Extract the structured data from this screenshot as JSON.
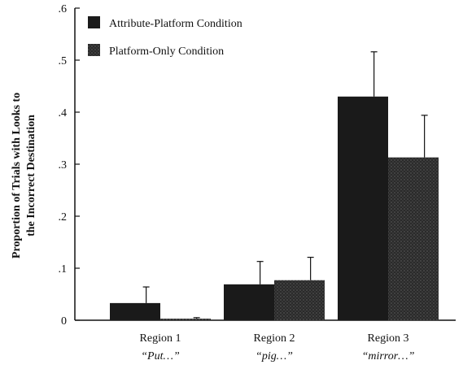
{
  "chart_data": {
    "type": "bar",
    "ylabel_lines": [
      "Proportion of Trials with Looks to",
      "the Incorrect Destination"
    ],
    "ylim": [
      0,
      0.6
    ],
    "yticks": [
      {
        "value": 0,
        "label": "0"
      },
      {
        "value": 0.1,
        "label": ".1"
      },
      {
        "value": 0.2,
        "label": ".2"
      },
      {
        "value": 0.3,
        "label": ".3"
      },
      {
        "value": 0.4,
        "label": ".4"
      },
      {
        "value": 0.5,
        "label": ".5"
      },
      {
        "value": 0.6,
        "label": ".6"
      }
    ],
    "categories": [
      "Region 1",
      "Region 2",
      "Region 3"
    ],
    "category_sublabels": [
      "“Put…”",
      "“pig…”",
      "“mirror…”"
    ],
    "legend_position": "top-left",
    "series": [
      {
        "name": "Attribute-Platform Condition",
        "color": "#1a1a1a",
        "pattern": "solid",
        "values": [
          0.033,
          0.069,
          0.43
        ],
        "errors": [
          0.031,
          0.044,
          0.086
        ]
      },
      {
        "name": "Platform-Only Condition",
        "color": "#3a3a3a",
        "pattern": "stipple",
        "values": [
          0.003,
          0.077,
          0.313
        ],
        "errors": [
          0.002,
          0.044,
          0.081
        ]
      }
    ]
  }
}
